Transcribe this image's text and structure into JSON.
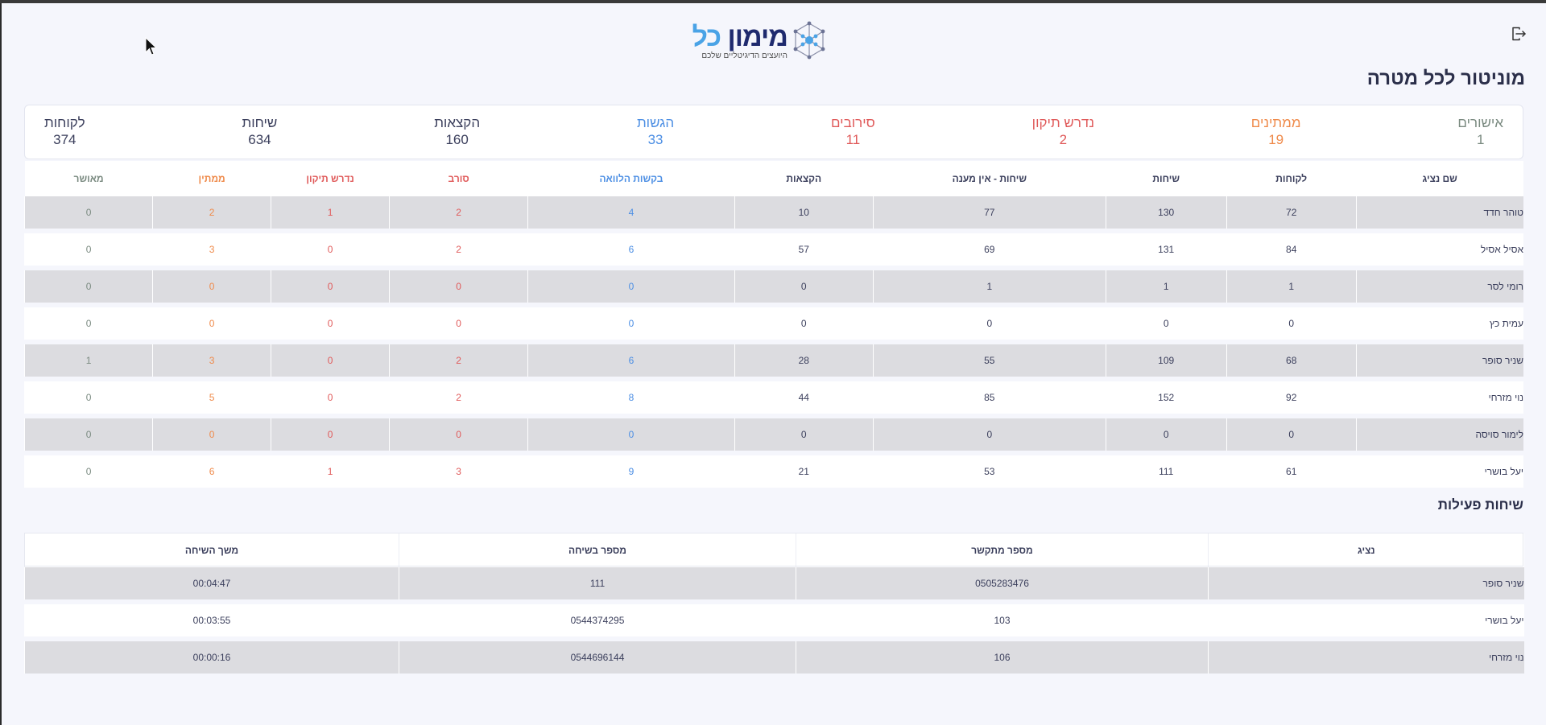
{
  "header": {
    "logo_part1": "מימון",
    "logo_part2": "כל",
    "logo_tagline": "היועצים הדיגיטליים שלכם",
    "page_title": "מוניטור לכל מטרה"
  },
  "stats": [
    {
      "label": "לקוחות",
      "value": "374",
      "color": "#3b3f5c"
    },
    {
      "label": "שיחות",
      "value": "634",
      "color": "#3b3f5c"
    },
    {
      "label": "הקצאות",
      "value": "160",
      "color": "#3b3f5c"
    },
    {
      "label": "הגשות",
      "value": "33",
      "color": "#4d8fe4"
    },
    {
      "label": "סירובים",
      "value": "11",
      "color": "#e05a5a"
    },
    {
      "label": "נדרש תיקון",
      "value": "2",
      "color": "#e05a5a"
    },
    {
      "label": "ממתינים",
      "value": "19",
      "color": "#ef8a4a"
    },
    {
      "label": "אישורים",
      "value": "1",
      "color": "#7a8a80"
    }
  ],
  "agents_table": {
    "headers": [
      "שם נציג",
      "לקוחות",
      "שיחות",
      "שיחות - אין מענה",
      "הקצאות",
      "בקשות הלוואה",
      "סורב",
      "נדרש תיקון",
      "ממתין",
      "מאושר"
    ],
    "rows": [
      [
        "טוהר חדד",
        "72",
        "130",
        "77",
        "10",
        "4",
        "2",
        "1",
        "2",
        "0"
      ],
      [
        "אסיל אסיל",
        "84",
        "131",
        "69",
        "57",
        "6",
        "2",
        "0",
        "3",
        "0"
      ],
      [
        "רומי לסר",
        "1",
        "1",
        "1",
        "0",
        "0",
        "0",
        "0",
        "0",
        "0"
      ],
      [
        "עמית כץ",
        "0",
        "0",
        "0",
        "0",
        "0",
        "0",
        "0",
        "0",
        "0"
      ],
      [
        "שניר סופר",
        "68",
        "109",
        "55",
        "28",
        "6",
        "2",
        "0",
        "3",
        "1"
      ],
      [
        "נוי מזרחי",
        "92",
        "152",
        "85",
        "44",
        "8",
        "2",
        "0",
        "5",
        "0"
      ],
      [
        "לימור סויסה",
        "0",
        "0",
        "0",
        "0",
        "0",
        "0",
        "0",
        "0",
        "0"
      ],
      [
        "יעל בושרי",
        "61",
        "111",
        "53",
        "21",
        "9",
        "3",
        "1",
        "6",
        "0"
      ]
    ]
  },
  "active_calls": {
    "title": "שיחות פעילות",
    "headers": [
      "נציג",
      "מספר מתקשר",
      "מספר בשיחה",
      "משך השיחה"
    ],
    "rows": [
      [
        "שניר סופר",
        "0505283476",
        "111",
        "00:04:47"
      ],
      [
        "יעל בושרי",
        "103",
        "0544374295",
        "00:03:55"
      ],
      [
        "נוי מזרחי",
        "106",
        "0544696144",
        "00:00:16"
      ]
    ]
  },
  "icons": {
    "logout": "logout-icon",
    "logo": "molecule-logo-icon",
    "cursor": "mouse-cursor-icon"
  }
}
